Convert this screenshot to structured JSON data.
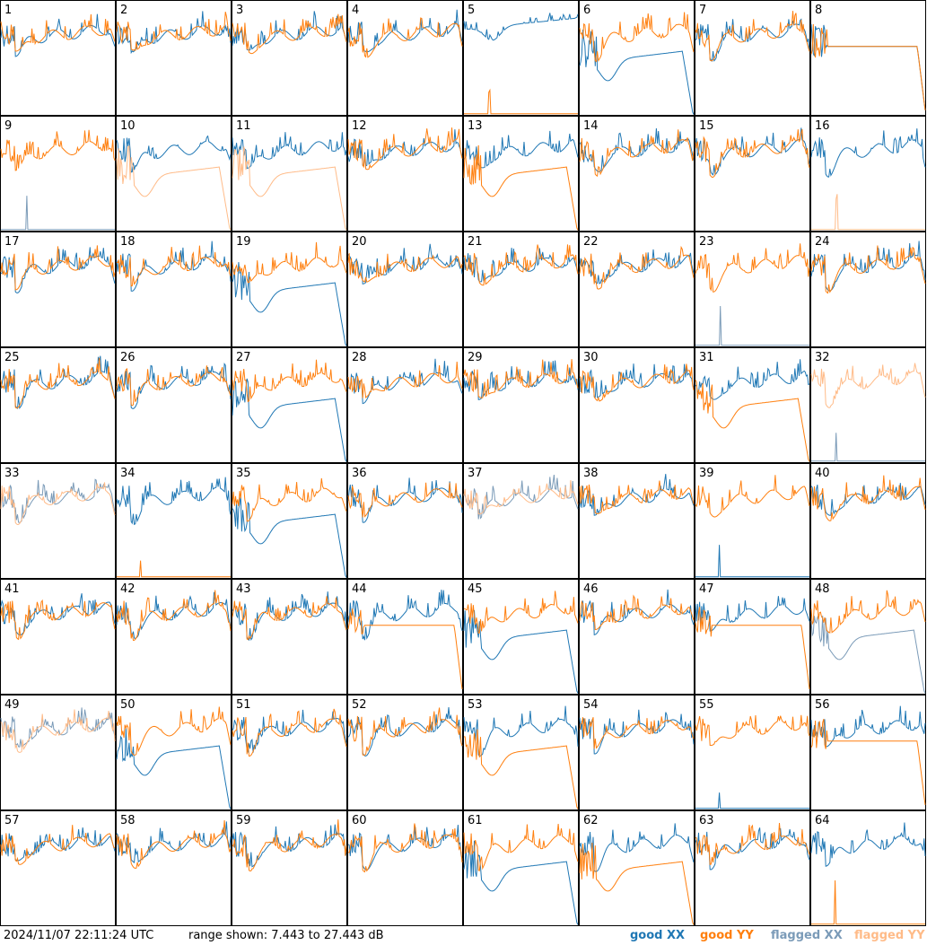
{
  "chart_data": {
    "type": "line",
    "timestamp": "2024/11/07 22:11:24 UTC",
    "range_text": "range shown: 7.443 to 27.443 dB",
    "ylim": [
      7.443,
      27.443
    ],
    "legend": [
      {
        "label": "good XX",
        "color": "#1f77b4"
      },
      {
        "label": "good YY",
        "color": "#ff7f0e"
      },
      {
        "label": "flagged XX",
        "color": "#7b9bb8"
      },
      {
        "label": "flagged YY",
        "color": "#ffbb88"
      }
    ],
    "panels": [
      {
        "id": "1",
        "xx": "good-norm",
        "yy": "good-norm"
      },
      {
        "id": "2",
        "xx": "good-norm",
        "yy": "good-norm"
      },
      {
        "id": "3",
        "xx": "good-norm",
        "yy": "good-norm"
      },
      {
        "id": "4",
        "xx": "good-norm",
        "yy": "good-norm"
      },
      {
        "id": "5",
        "xx": "good-high",
        "yy": "good-dead"
      },
      {
        "id": "6",
        "xx": "good-low",
        "yy": "good-norm"
      },
      {
        "id": "7",
        "xx": "good-norm",
        "yy": "good-norm"
      },
      {
        "id": "8",
        "xx": "good-flat",
        "yy": "good-flat"
      },
      {
        "id": "9",
        "xx": "flagged-dead",
        "yy": "good-norm"
      },
      {
        "id": "10",
        "xx": "good-norm",
        "yy": "flagged-low"
      },
      {
        "id": "11",
        "xx": "good-norm",
        "yy": "flagged-low"
      },
      {
        "id": "12",
        "xx": "good-norm",
        "yy": "good-norm"
      },
      {
        "id": "13",
        "xx": "good-norm",
        "yy": "good-low"
      },
      {
        "id": "14",
        "xx": "good-norm",
        "yy": "good-norm"
      },
      {
        "id": "15",
        "xx": "good-norm",
        "yy": "good-norm"
      },
      {
        "id": "16",
        "xx": "good-norm",
        "yy": "flagged-dead"
      },
      {
        "id": "17",
        "xx": "good-norm",
        "yy": "good-norm"
      },
      {
        "id": "18",
        "xx": "good-norm",
        "yy": "good-norm"
      },
      {
        "id": "19",
        "xx": "good-low",
        "yy": "good-norm"
      },
      {
        "id": "20",
        "xx": "good-norm",
        "yy": "good-norm"
      },
      {
        "id": "21",
        "xx": "good-norm",
        "yy": "good-norm"
      },
      {
        "id": "22",
        "xx": "good-norm",
        "yy": "good-norm"
      },
      {
        "id": "23",
        "xx": "flagged-dead",
        "yy": "good-norm"
      },
      {
        "id": "24",
        "xx": "good-norm",
        "yy": "good-norm"
      },
      {
        "id": "25",
        "xx": "good-norm",
        "yy": "good-norm"
      },
      {
        "id": "26",
        "xx": "good-norm",
        "yy": "good-norm"
      },
      {
        "id": "27",
        "xx": "good-low",
        "yy": "good-norm"
      },
      {
        "id": "28",
        "xx": "good-norm",
        "yy": "good-norm"
      },
      {
        "id": "29",
        "xx": "good-norm",
        "yy": "good-norm"
      },
      {
        "id": "30",
        "xx": "good-norm",
        "yy": "good-norm"
      },
      {
        "id": "31",
        "xx": "good-norm",
        "yy": "good-low"
      },
      {
        "id": "32",
        "xx": "flagged-dead",
        "yy": "flagged-norm"
      },
      {
        "id": "33",
        "xx": "flagged-norm",
        "yy": "flagged-norm"
      },
      {
        "id": "34",
        "xx": "good-norm",
        "yy": "good-dead"
      },
      {
        "id": "35",
        "xx": "good-low",
        "yy": "good-norm"
      },
      {
        "id": "36",
        "xx": "good-norm",
        "yy": "good-norm"
      },
      {
        "id": "37",
        "xx": "flagged-norm",
        "yy": "flagged-norm"
      },
      {
        "id": "38",
        "xx": "good-norm",
        "yy": "good-norm"
      },
      {
        "id": "39",
        "xx": "good-dead",
        "yy": "good-norm"
      },
      {
        "id": "40",
        "xx": "good-norm",
        "yy": "good-norm"
      },
      {
        "id": "41",
        "xx": "good-norm",
        "yy": "good-norm"
      },
      {
        "id": "42",
        "xx": "good-norm",
        "yy": "good-norm"
      },
      {
        "id": "43",
        "xx": "good-norm",
        "yy": "good-norm"
      },
      {
        "id": "44",
        "xx": "good-norm",
        "yy": "good-flat"
      },
      {
        "id": "45",
        "xx": "good-low",
        "yy": "good-norm"
      },
      {
        "id": "46",
        "xx": "good-norm",
        "yy": "good-norm"
      },
      {
        "id": "47",
        "xx": "good-norm",
        "yy": "good-flat"
      },
      {
        "id": "48",
        "xx": "flagged-low",
        "yy": "good-norm"
      },
      {
        "id": "49",
        "xx": "flagged-norm",
        "yy": "flagged-norm"
      },
      {
        "id": "50",
        "xx": "good-low",
        "yy": "good-norm"
      },
      {
        "id": "51",
        "xx": "good-norm",
        "yy": "good-norm"
      },
      {
        "id": "52",
        "xx": "good-norm",
        "yy": "good-norm"
      },
      {
        "id": "53",
        "xx": "good-norm",
        "yy": "good-low"
      },
      {
        "id": "54",
        "xx": "good-norm",
        "yy": "good-norm"
      },
      {
        "id": "55",
        "xx": "good-dead",
        "yy": "good-norm"
      },
      {
        "id": "56",
        "xx": "good-norm",
        "yy": "good-flat"
      },
      {
        "id": "57",
        "xx": "good-norm",
        "yy": "good-norm"
      },
      {
        "id": "58",
        "xx": "good-norm",
        "yy": "good-norm"
      },
      {
        "id": "59",
        "xx": "good-norm",
        "yy": "good-norm"
      },
      {
        "id": "60",
        "xx": "good-norm",
        "yy": "good-norm"
      },
      {
        "id": "61",
        "xx": "good-low",
        "yy": "good-norm"
      },
      {
        "id": "62",
        "xx": "good-norm",
        "yy": "good-low"
      },
      {
        "id": "63",
        "xx": "good-norm",
        "yy": "good-norm"
      },
      {
        "id": "64",
        "xx": "good-norm",
        "yy": "good-dead"
      }
    ]
  }
}
